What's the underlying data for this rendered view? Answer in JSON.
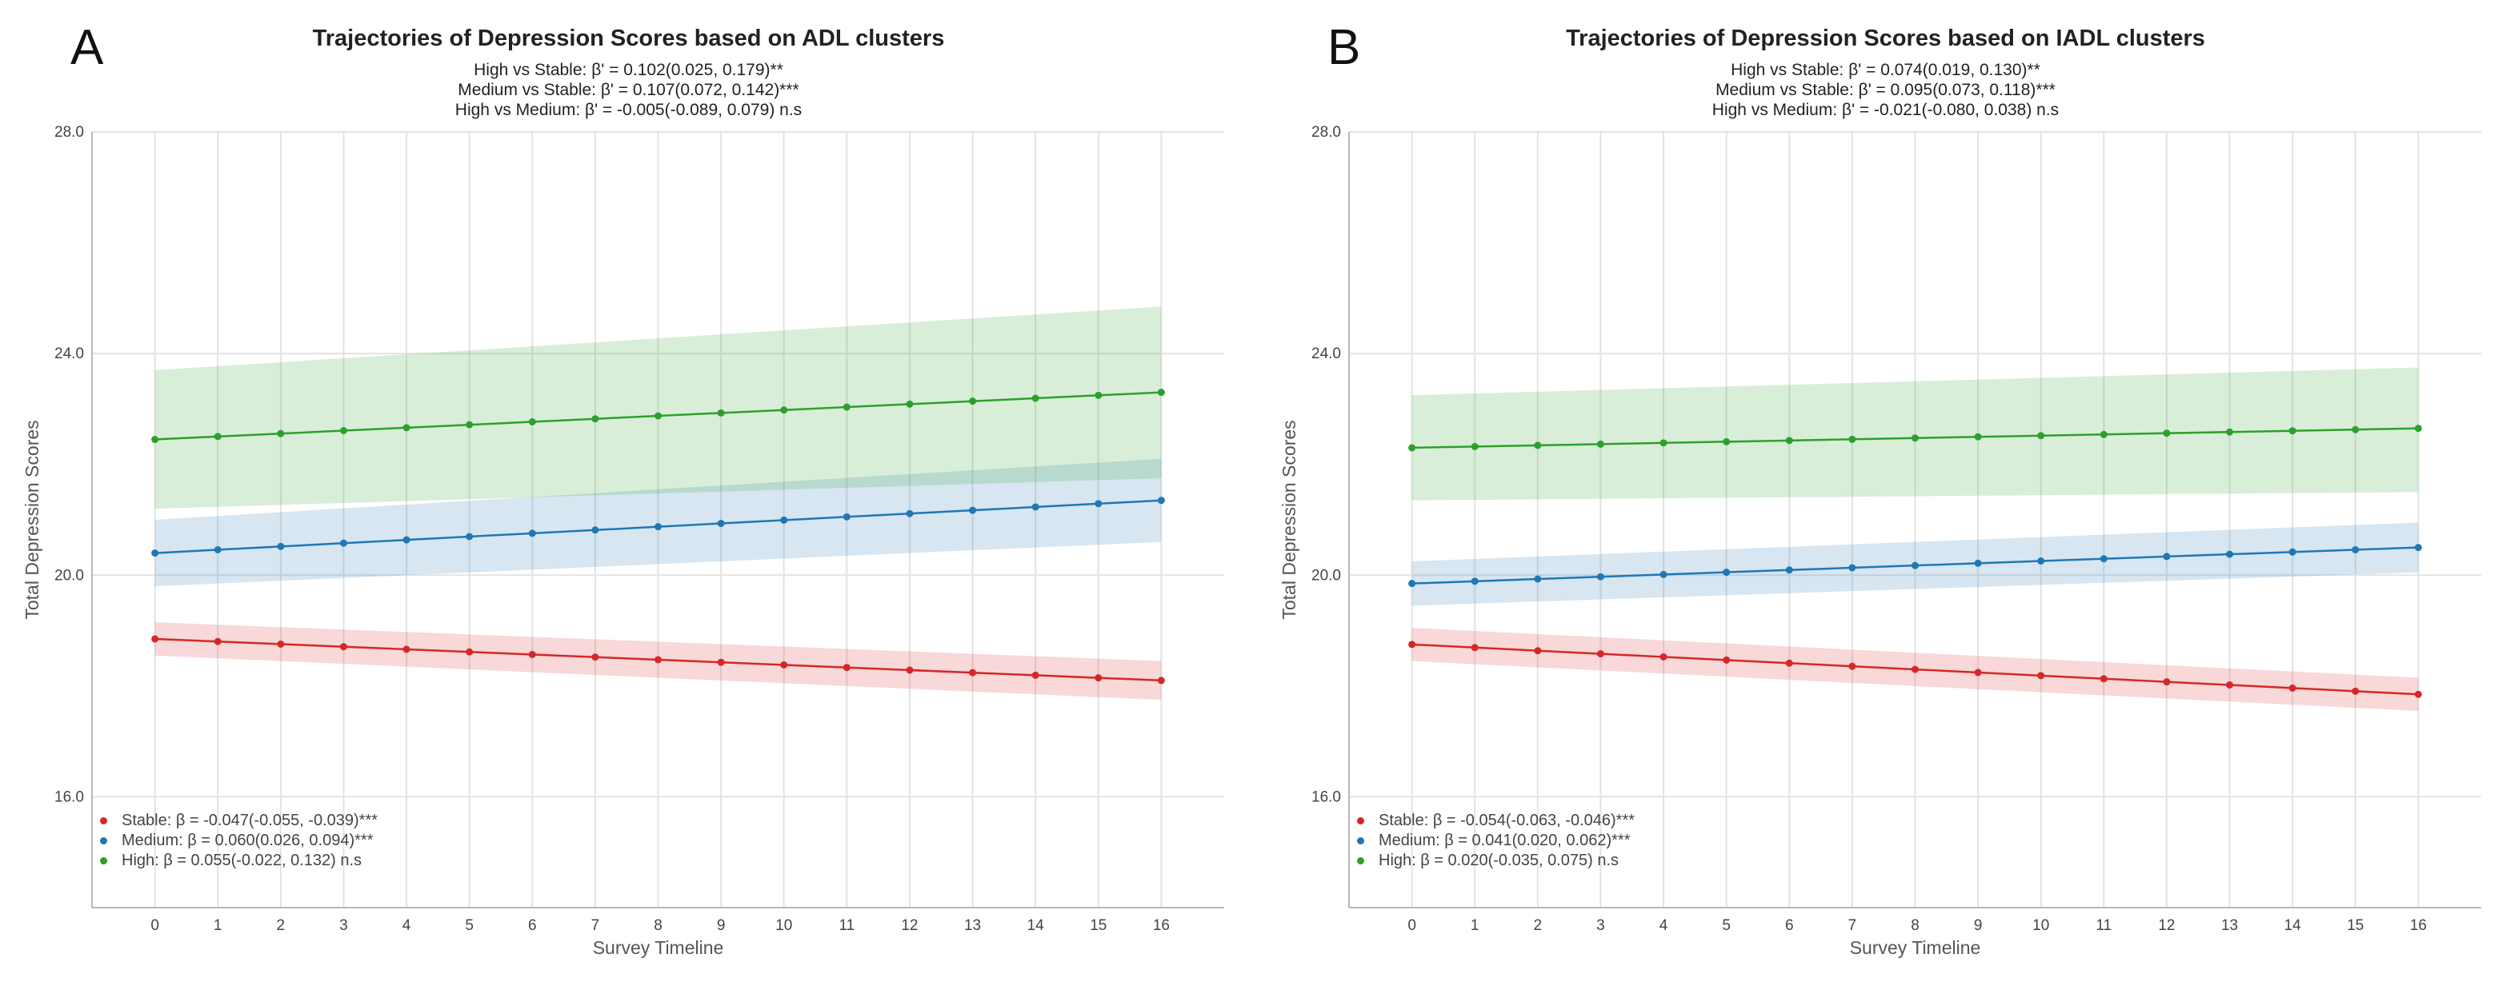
{
  "colors": {
    "stable": "#d62728",
    "medium": "#1f77b4",
    "high": "#2ca02c",
    "grid": "#e3e3e3",
    "axis": "#b8b8b8"
  },
  "chart_data": [
    {
      "type": "line",
      "panel_label": "A",
      "title": "Trajectories of Depression Scores based on ADL clusters",
      "subtitles": [
        "High vs Stable: β' = 0.102(0.025, 0.179)**",
        "Medium vs Stable: β' = 0.107(0.072, 0.142)***",
        "High vs Medium: β' = -0.005(-0.089, 0.079) n.s"
      ],
      "xlabel": "Survey Timeline",
      "ylabel": "Total Depression Scores",
      "xlim": [
        -1,
        17
      ],
      "ylim": [
        14,
        28
      ],
      "x_ticks": [
        0,
        1,
        2,
        3,
        4,
        5,
        6,
        7,
        8,
        9,
        10,
        11,
        12,
        13,
        14,
        15,
        16
      ],
      "y_ticks": [
        16.0,
        20.0,
        24.0,
        28.0
      ],
      "y_tick_labels": [
        "16.0",
        "20.0",
        "24.0",
        "28.0"
      ],
      "grid": true,
      "legend_position": "bottom-left",
      "series": [
        {
          "name": "Stable",
          "key": "stable",
          "start": 18.85,
          "end": 18.1,
          "ci_start": [
            18.55,
            19.15
          ],
          "ci_end": [
            17.75,
            18.45
          ],
          "legend": "Stable: β = -0.047(-0.055, -0.039)***"
        },
        {
          "name": "Medium",
          "key": "medium",
          "start": 20.4,
          "end": 21.35,
          "ci_start": [
            19.8,
            21.0
          ],
          "ci_end": [
            20.6,
            22.1
          ],
          "legend": "Medium: β = 0.060(0.026, 0.094)***"
        },
        {
          "name": "High",
          "key": "high",
          "start": 22.45,
          "end": 23.3,
          "ci_start": [
            21.2,
            23.7
          ],
          "ci_end": [
            21.75,
            24.85
          ],
          "legend": "High: β = 0.055(-0.022, 0.132) n.s"
        }
      ]
    },
    {
      "type": "line",
      "panel_label": "B",
      "title": "Trajectories of Depression Scores based on IADL clusters",
      "subtitles": [
        "High vs Stable: β' = 0.074(0.019, 0.130)**",
        "Medium vs Stable: β' = 0.095(0.073, 0.118)***",
        "High vs Medium: β' = -0.021(-0.080, 0.038) n.s"
      ],
      "xlabel": "Survey Timeline",
      "ylabel": "Total Depression Scores",
      "xlim": [
        -1,
        17
      ],
      "ylim": [
        14,
        28
      ],
      "x_ticks": [
        0,
        1,
        2,
        3,
        4,
        5,
        6,
        7,
        8,
        9,
        10,
        11,
        12,
        13,
        14,
        15,
        16
      ],
      "y_ticks": [
        16.0,
        20.0,
        24.0,
        28.0
      ],
      "y_tick_labels": [
        "16.0",
        "20.0",
        "24.0",
        "28.0"
      ],
      "grid": true,
      "legend_position": "bottom-left",
      "series": [
        {
          "name": "Stable",
          "key": "stable",
          "start": 18.75,
          "end": 17.85,
          "ci_start": [
            18.45,
            19.05
          ],
          "ci_end": [
            17.55,
            18.15
          ],
          "legend": "Stable: β = -0.054(-0.063, -0.046)***"
        },
        {
          "name": "Medium",
          "key": "medium",
          "start": 19.85,
          "end": 20.5,
          "ci_start": [
            19.45,
            20.25
          ],
          "ci_end": [
            20.05,
            20.95
          ],
          "legend": "Medium: β = 0.041(0.020, 0.062)***"
        },
        {
          "name": "High",
          "key": "high",
          "start": 22.3,
          "end": 22.65,
          "ci_start": [
            21.35,
            23.25
          ],
          "ci_end": [
            21.5,
            23.75
          ],
          "legend": "High: β = 0.020(-0.035, 0.075) n.s"
        }
      ]
    }
  ]
}
